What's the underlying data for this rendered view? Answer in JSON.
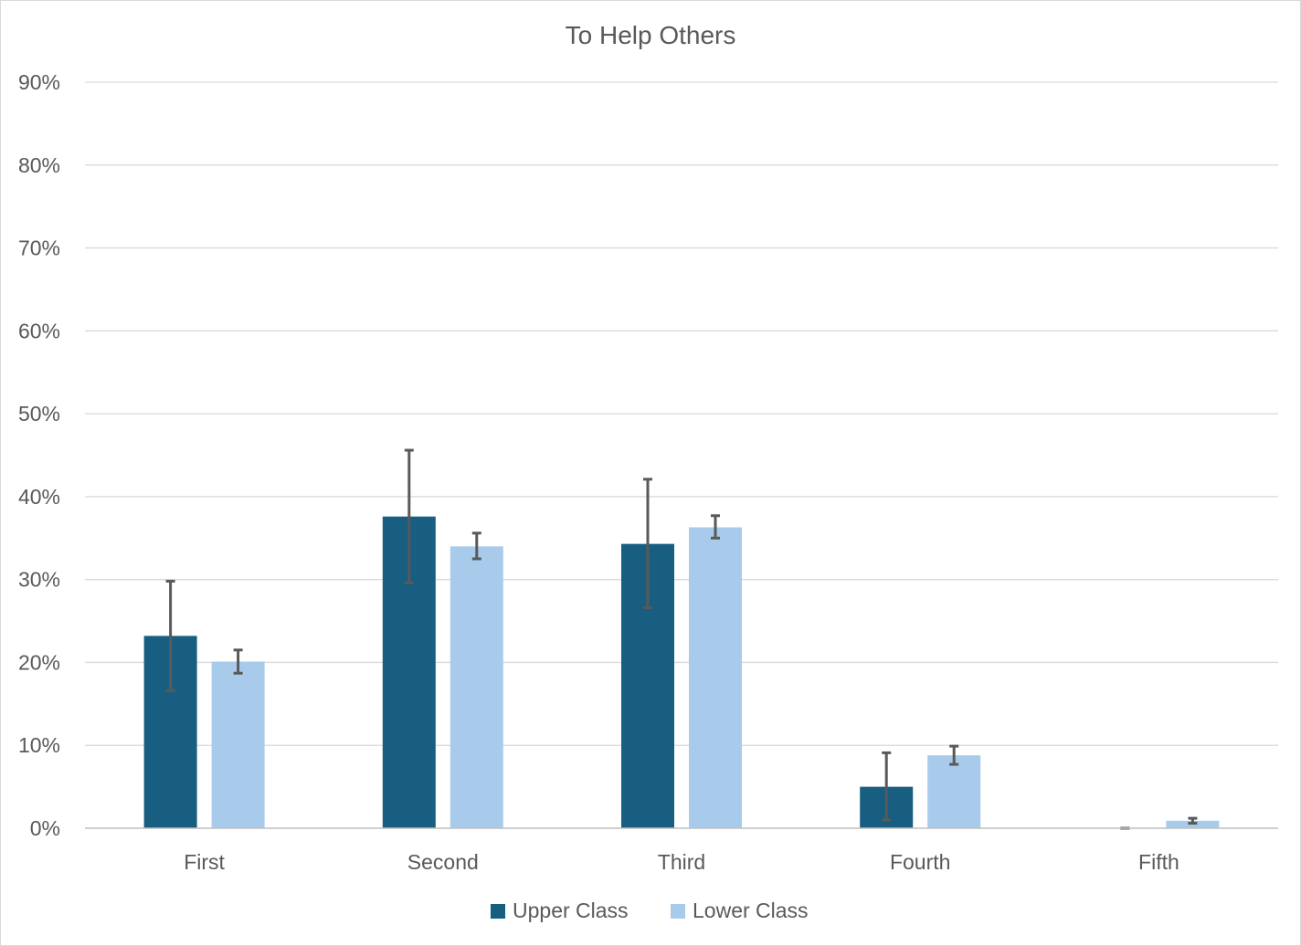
{
  "chart_data": {
    "type": "bar",
    "title": "To Help Others",
    "categories": [
      "First",
      "Second",
      "Third",
      "Fourth",
      "Fifth"
    ],
    "series": [
      {
        "name": "Upper Class",
        "color": "#175E81",
        "values": [
          23.2,
          37.6,
          34.3,
          5.0,
          0.0
        ],
        "error_low": [
          16.6,
          29.6,
          26.6,
          1.0,
          0.0
        ],
        "error_high": [
          29.8,
          45.6,
          42.1,
          9.1,
          0.0
        ]
      },
      {
        "name": "Lower Class",
        "color": "#A8CBEC",
        "values": [
          20.1,
          34.0,
          36.3,
          8.8,
          0.9
        ],
        "error_low": [
          18.7,
          32.5,
          35.0,
          7.7,
          0.6
        ],
        "error_high": [
          21.5,
          35.6,
          37.7,
          9.9,
          1.2
        ]
      }
    ],
    "ylim": [
      0,
      90
    ],
    "yticks": [
      0,
      10,
      20,
      30,
      40,
      50,
      60,
      70,
      80,
      90
    ],
    "ytick_labels": [
      "0%",
      "10%",
      "20%",
      "30%",
      "40%",
      "50%",
      "60%",
      "70%",
      "80%",
      "90%"
    ],
    "xlabel": "",
    "ylabel": "",
    "grid": true,
    "legend": "bottom",
    "error_bar_color": "#595959"
  }
}
